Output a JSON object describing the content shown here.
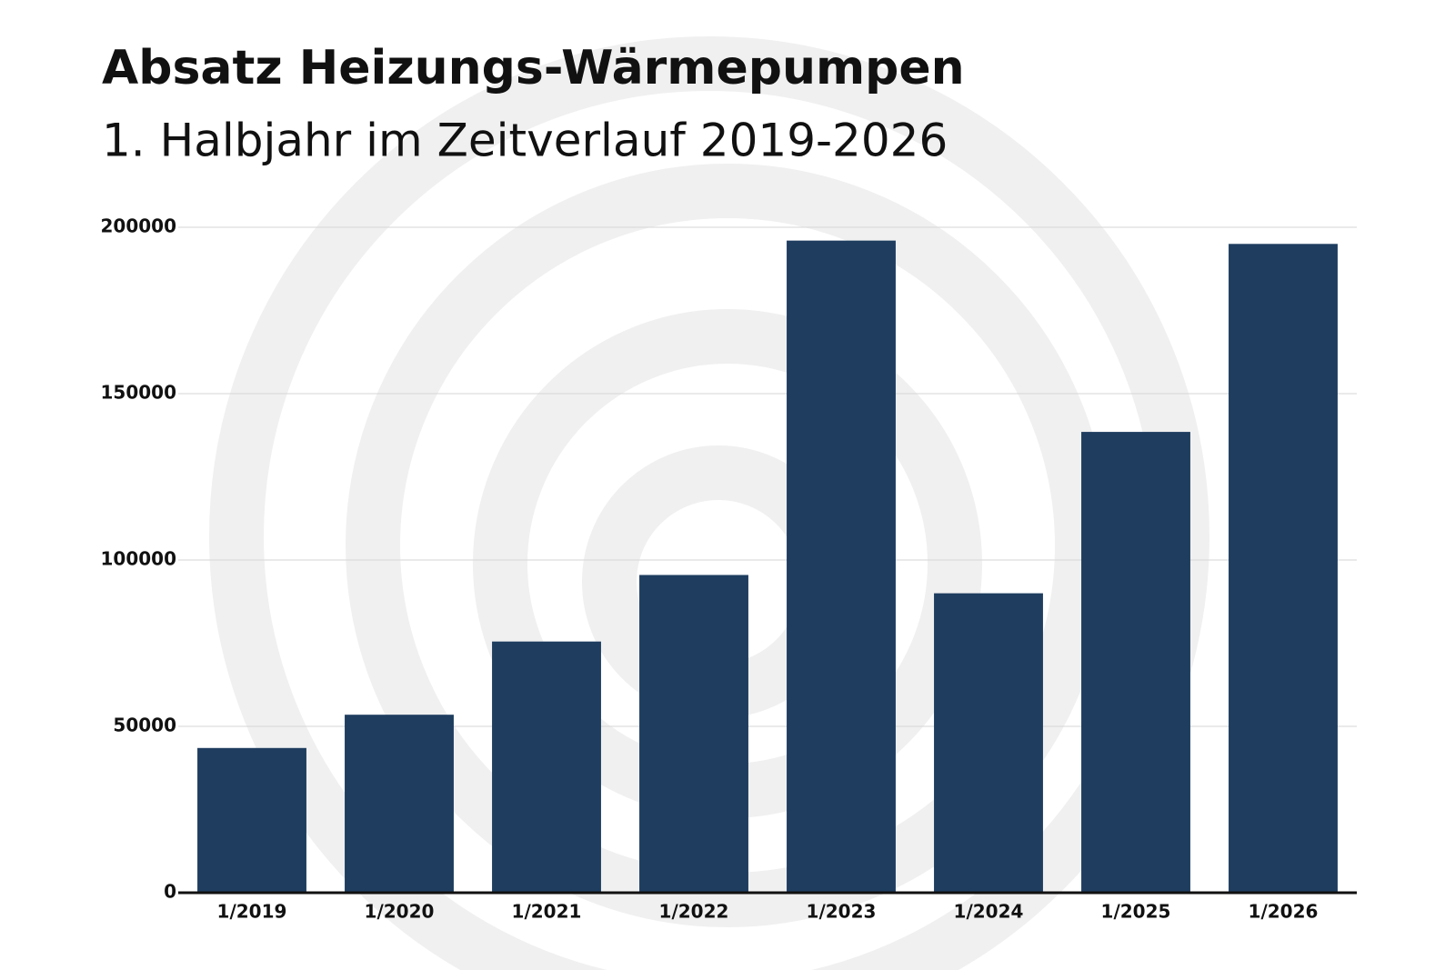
{
  "chart_data": {
    "type": "bar",
    "title": "Absatz Heizungs-Wärmepumpen",
    "subtitle": "1. Halbjahr im Zeitverlauf 2019-2026",
    "categories": [
      "1/2019",
      "1/2020",
      "1/2021",
      "1/2022",
      "1/2023",
      "1/2024",
      "1/2025",
      "1/2026"
    ],
    "values": [
      43500,
      53500,
      75500,
      95500,
      196000,
      90000,
      138500,
      195000
    ],
    "color": "#1e3d5f",
    "ylim": [
      0,
      200000
    ],
    "yticks": [
      0,
      50000,
      100000,
      150000,
      200000
    ],
    "grid": true
  }
}
